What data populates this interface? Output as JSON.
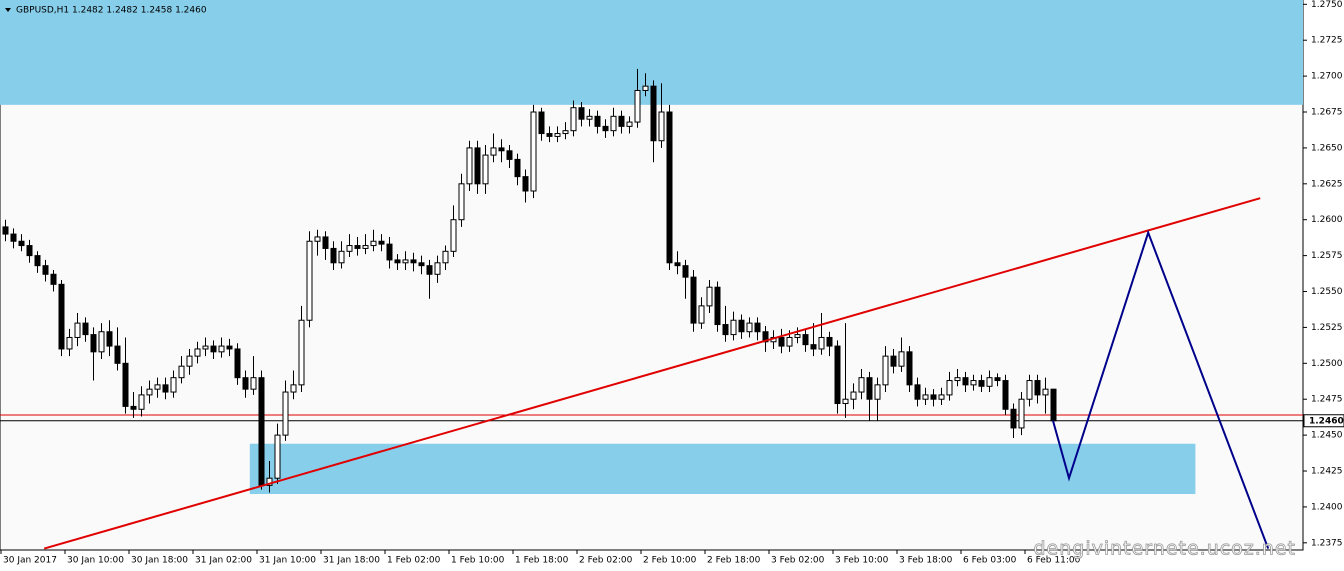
{
  "chart_data": {
    "type": "candlestick",
    "title": "GBPUSD,H1  1.2482 1.2482 1.2458 1.2460",
    "watermark": "dengivinternete.ucoz.net",
    "categories": [
      "30 Jan 2017",
      null,
      null,
      null,
      null,
      null,
      null,
      null,
      "30 Jan 10:00",
      null,
      null,
      null,
      null,
      null,
      null,
      null,
      "30 Jan 18:00",
      null,
      null,
      null,
      null,
      null,
      null,
      null,
      "31 Jan 02:00",
      null,
      null,
      null,
      null,
      null,
      null,
      null,
      "31 Jan 10:00",
      null,
      null,
      null,
      null,
      null,
      null,
      null,
      "31 Jan 18:00",
      null,
      null,
      null,
      null,
      null,
      null,
      null,
      "1 Feb 02:00",
      null,
      null,
      null,
      null,
      null,
      null,
      null,
      "1 Feb 10:00",
      null,
      null,
      null,
      null,
      null,
      null,
      null,
      "1 Feb 18:00",
      null,
      null,
      null,
      null,
      null,
      null,
      null,
      "2 Feb 02:00",
      null,
      null,
      null,
      null,
      null,
      null,
      null,
      "2 Feb 10:00",
      null,
      null,
      null,
      null,
      null,
      null,
      null,
      "2 Feb 18:00",
      null,
      null,
      null,
      null,
      null,
      null,
      null,
      "3 Feb 02:00",
      null,
      null,
      null,
      null,
      null,
      null,
      null,
      "3 Feb 10:00",
      null,
      null,
      null,
      null,
      null,
      null,
      null,
      "3 Feb 18:00",
      null,
      null,
      null,
      null,
      null,
      null,
      null,
      "6 Feb 03:00",
      null,
      null,
      null,
      null,
      null,
      null,
      null,
      "6 Feb 11:00",
      null,
      null,
      null
    ],
    "ohlc": [
      [
        1.2595,
        1.26,
        1.2585,
        1.259
      ],
      [
        1.259,
        1.2594,
        1.258,
        1.2585
      ],
      [
        1.2585,
        1.259,
        1.2578,
        1.2582
      ],
      [
        1.2582,
        1.2586,
        1.257,
        1.2575
      ],
      [
        1.2575,
        1.2578,
        1.2563,
        1.2568
      ],
      [
        1.2568,
        1.2572,
        1.2557,
        1.2562
      ],
      [
        1.2562,
        1.2565,
        1.255,
        1.2555
      ],
      [
        1.2555,
        1.2558,
        1.2505,
        1.251
      ],
      [
        1.251,
        1.2524,
        1.2505,
        1.2518
      ],
      [
        1.2518,
        1.2535,
        1.2512,
        1.2528
      ],
      [
        1.2528,
        1.2532,
        1.2515,
        1.252
      ],
      [
        1.252,
        1.2525,
        1.2488,
        1.2508
      ],
      [
        1.2508,
        1.2528,
        1.2503,
        1.2522
      ],
      [
        1.2522,
        1.253,
        1.2505,
        1.2512
      ],
      [
        1.2512,
        1.2525,
        1.2495,
        1.25
      ],
      [
        1.25,
        1.2518,
        1.2465,
        1.247
      ],
      [
        1.247,
        1.248,
        1.2462,
        1.2468
      ],
      [
        1.2468,
        1.2484,
        1.2463,
        1.2478
      ],
      [
        1.2478,
        1.2488,
        1.2472,
        1.2482
      ],
      [
        1.2482,
        1.249,
        1.2476,
        1.2485
      ],
      [
        1.2485,
        1.249,
        1.2475,
        1.248
      ],
      [
        1.248,
        1.2495,
        1.2476,
        1.249
      ],
      [
        1.249,
        1.2505,
        1.2486,
        1.2498
      ],
      [
        1.2498,
        1.251,
        1.2492,
        1.2505
      ],
      [
        1.2505,
        1.2515,
        1.25,
        1.251
      ],
      [
        1.251,
        1.2518,
        1.2505,
        1.2512
      ],
      [
        1.2512,
        1.2516,
        1.2503,
        1.2508
      ],
      [
        1.2508,
        1.2518,
        1.2504,
        1.2512
      ],
      [
        1.2512,
        1.2517,
        1.2505,
        1.251
      ],
      [
        1.251,
        1.2514,
        1.2485,
        1.249
      ],
      [
        1.249,
        1.2495,
        1.2476,
        1.2482
      ],
      [
        1.2482,
        1.2505,
        1.2478,
        1.249
      ],
      [
        1.249,
        1.2495,
        1.2412,
        1.2415
      ],
      [
        1.2415,
        1.2432,
        1.241,
        1.242
      ],
      [
        1.242,
        1.2458,
        1.2416,
        1.245
      ],
      [
        1.245,
        1.2488,
        1.2446,
        1.248
      ],
      [
        1.248,
        1.2495,
        1.2475,
        1.2485
      ],
      [
        1.2485,
        1.254,
        1.248,
        1.253
      ],
      [
        1.253,
        1.2592,
        1.2525,
        1.2585
      ],
      [
        1.2585,
        1.2593,
        1.2575,
        1.2588
      ],
      [
        1.2588,
        1.2592,
        1.2572,
        1.258
      ],
      [
        1.258,
        1.2585,
        1.2565,
        1.257
      ],
      [
        1.257,
        1.2585,
        1.2566,
        1.2578
      ],
      [
        1.2578,
        1.259,
        1.2574,
        1.2582
      ],
      [
        1.2582,
        1.2588,
        1.2575,
        1.258
      ],
      [
        1.258,
        1.259,
        1.2576,
        1.2582
      ],
      [
        1.2582,
        1.2593,
        1.2578,
        1.2585
      ],
      [
        1.2585,
        1.259,
        1.2578,
        1.2583
      ],
      [
        1.2583,
        1.2588,
        1.2566,
        1.2572
      ],
      [
        1.2572,
        1.2576,
        1.2565,
        1.257
      ],
      [
        1.257,
        1.2578,
        1.2565,
        1.2572
      ],
      [
        1.2572,
        1.2577,
        1.2564,
        1.257
      ],
      [
        1.257,
        1.2575,
        1.2562,
        1.2568
      ],
      [
        1.2568,
        1.2572,
        1.2545,
        1.2562
      ],
      [
        1.2562,
        1.2575,
        1.2556,
        1.257
      ],
      [
        1.257,
        1.2582,
        1.2565,
        1.2578
      ],
      [
        1.2578,
        1.261,
        1.2574,
        1.26
      ],
      [
        1.26,
        1.2632,
        1.2595,
        1.2625
      ],
      [
        1.2625,
        1.2655,
        1.262,
        1.265
      ],
      [
        1.265,
        1.2655,
        1.2618,
        1.2625
      ],
      [
        1.2625,
        1.2652,
        1.2618,
        1.2645
      ],
      [
        1.2645,
        1.266,
        1.264,
        1.265
      ],
      [
        1.265,
        1.2656,
        1.264,
        1.2648
      ],
      [
        1.2648,
        1.2652,
        1.2636,
        1.2642
      ],
      [
        1.2642,
        1.2646,
        1.2624,
        1.263
      ],
      [
        1.263,
        1.2635,
        1.2612,
        1.262
      ],
      [
        1.262,
        1.268,
        1.2615,
        1.2675
      ],
      [
        1.2675,
        1.2678,
        1.2655,
        1.266
      ],
      [
        1.266,
        1.2665,
        1.2654,
        1.2658
      ],
      [
        1.2658,
        1.2665,
        1.2654,
        1.266
      ],
      [
        1.266,
        1.2668,
        1.2656,
        1.2662
      ],
      [
        1.2662,
        1.2683,
        1.2658,
        1.2678
      ],
      [
        1.2678,
        1.2682,
        1.2665,
        1.267
      ],
      [
        1.267,
        1.2677,
        1.2665,
        1.2672
      ],
      [
        1.2672,
        1.2676,
        1.266,
        1.2665
      ],
      [
        1.2665,
        1.267,
        1.2657,
        1.2662
      ],
      [
        1.2662,
        1.2678,
        1.2658,
        1.2672
      ],
      [
        1.2672,
        1.2676,
        1.266,
        1.2665
      ],
      [
        1.2665,
        1.2672,
        1.266,
        1.2668
      ],
      [
        1.2668,
        1.2705,
        1.2664,
        1.269
      ],
      [
        1.269,
        1.2702,
        1.2686,
        1.2693
      ],
      [
        1.2693,
        1.2697,
        1.264,
        1.2655
      ],
      [
        1.2655,
        1.2695,
        1.265,
        1.2675
      ],
      [
        1.2675,
        1.268,
        1.2565,
        1.257
      ],
      [
        1.257,
        1.2578,
        1.2562,
        1.2568
      ],
      [
        1.2568,
        1.2572,
        1.2545,
        1.256
      ],
      [
        1.256,
        1.2565,
        1.2522,
        1.2528
      ],
      [
        1.2528,
        1.2546,
        1.2524,
        1.254
      ],
      [
        1.254,
        1.2558,
        1.2535,
        1.2553
      ],
      [
        1.2553,
        1.2557,
        1.2522,
        1.2527
      ],
      [
        1.2527,
        1.254,
        1.2515,
        1.252
      ],
      [
        1.252,
        1.2536,
        1.2516,
        1.253
      ],
      [
        1.253,
        1.2534,
        1.2517,
        1.2522
      ],
      [
        1.2522,
        1.2532,
        1.2518,
        1.2528
      ],
      [
        1.2528,
        1.2532,
        1.2516,
        1.2522
      ],
      [
        1.2522,
        1.2526,
        1.2508,
        1.2515
      ],
      [
        1.2515,
        1.2523,
        1.251,
        1.2518
      ],
      [
        1.2518,
        1.2524,
        1.2507,
        1.2512
      ],
      [
        1.2512,
        1.2523,
        1.2508,
        1.2518
      ],
      [
        1.2518,
        1.2525,
        1.2514,
        1.252
      ],
      [
        1.252,
        1.2524,
        1.2508,
        1.2513
      ],
      [
        1.2513,
        1.2528,
        1.2505,
        1.251
      ],
      [
        1.251,
        1.2535,
        1.2506,
        1.2518
      ],
      [
        1.2518,
        1.2522,
        1.2505,
        1.2512
      ],
      [
        1.2512,
        1.2516,
        1.2465,
        1.2472
      ],
      [
        1.2472,
        1.2528,
        1.2462,
        1.2475
      ],
      [
        1.2475,
        1.2486,
        1.2468,
        1.248
      ],
      [
        1.248,
        1.2496,
        1.2475,
        1.249
      ],
      [
        1.249,
        1.2494,
        1.246,
        1.2475
      ],
      [
        1.2475,
        1.249,
        1.246,
        1.2485
      ],
      [
        1.2485,
        1.2512,
        1.248,
        1.2505
      ],
      [
        1.2505,
        1.251,
        1.2493,
        1.2498
      ],
      [
        1.2498,
        1.2518,
        1.2494,
        1.2508
      ],
      [
        1.2508,
        1.2512,
        1.248,
        1.2485
      ],
      [
        1.2485,
        1.249,
        1.247,
        1.2475
      ],
      [
        1.2475,
        1.2483,
        1.2471,
        1.2478
      ],
      [
        1.2478,
        1.2482,
        1.247,
        1.2475
      ],
      [
        1.2475,
        1.2483,
        1.2471,
        1.2478
      ],
      [
        1.2478,
        1.2494,
        1.2474,
        1.2488
      ],
      [
        1.2488,
        1.2496,
        1.2484,
        1.249
      ],
      [
        1.249,
        1.2494,
        1.248,
        1.2485
      ],
      [
        1.2485,
        1.2492,
        1.2481,
        1.2488
      ],
      [
        1.2488,
        1.2492,
        1.248,
        1.2484
      ],
      [
        1.2484,
        1.2495,
        1.248,
        1.249
      ],
      [
        1.249,
        1.2493,
        1.2484,
        1.2488
      ],
      [
        1.2488,
        1.2492,
        1.2464,
        1.2468
      ],
      [
        1.2468,
        1.2472,
        1.2448,
        1.2455
      ],
      [
        1.2455,
        1.248,
        1.245,
        1.2475
      ],
      [
        1.2475,
        1.2492,
        1.247,
        1.2488
      ],
      [
        1.2488,
        1.2492,
        1.2472,
        1.2478
      ],
      [
        1.2478,
        1.249,
        1.2465,
        1.2482
      ],
      [
        1.2482,
        1.2482,
        1.2458,
        1.246
      ]
    ],
    "up_color": "#ffffff",
    "down_color": "#000000",
    "outline_color": "#000000",
    "xlim": [
      -0.625,
      162.25
    ],
    "ylim": [
      1.237,
      1.2753
    ],
    "yticks": [
      1.2375,
      {
        "value": 1.24,
        "label": "1.2400"
      },
      1.2425,
      {
        "value": 1.245,
        "label": "1.2450"
      },
      1.2475,
      {
        "value": 1.25,
        "label": "1.2500"
      },
      1.2525,
      {
        "value": 1.255,
        "label": "1.2550"
      },
      1.2575,
      {
        "value": 1.26,
        "label": "1.2600"
      },
      1.2625,
      {
        "value": 1.265,
        "label": "1.2650"
      },
      1.2675,
      {
        "value": 1.27,
        "label": "1.2700"
      },
      1.2725,
      {
        "value": 1.275,
        "label": "1.2750"
      }
    ],
    "zones": [
      {
        "color": "#87ceeb",
        "x": [
          -1,
          163
        ],
        "y": [
          1.268,
          1.2753
        ]
      },
      {
        "color": "#87ceeb",
        "x": [
          30.6,
          148.8
        ],
        "y": [
          1.2409,
          1.2444
        ]
      }
    ],
    "lines": [
      {
        "color": "#e00000",
        "x": [
          4.9,
          156.9
        ],
        "y": [
          1.2371,
          1.2615
        ]
      },
      {
        "color": "#00008b",
        "x": [
          131,
          133,
          142.9,
          157.9
        ],
        "y": [
          1.246,
          1.242,
          1.2591,
          1.2371
        ]
      }
    ],
    "hlines": [
      {
        "color": "#e00000",
        "value": 1.2464
      },
      {
        "color": "#000000",
        "value": 1.246
      }
    ],
    "price_label": {
      "value": 1.246,
      "label": "1.2460"
    }
  }
}
